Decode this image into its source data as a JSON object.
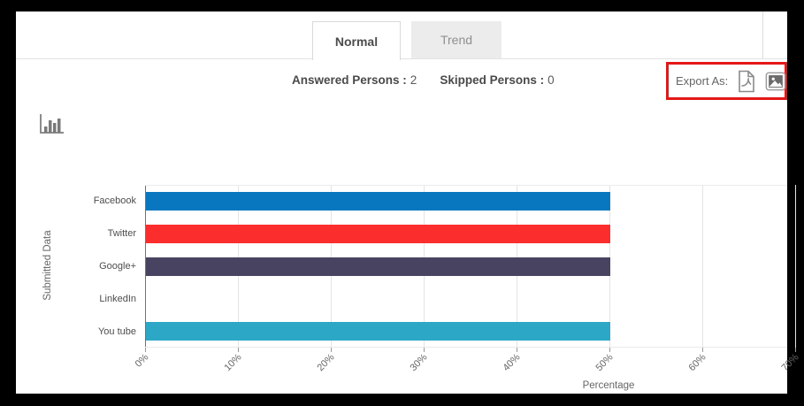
{
  "tabs": {
    "normal": "Normal",
    "trend": "Trend"
  },
  "stats": {
    "answered_label": "Answered Persons :",
    "answered_value": "2",
    "skipped_label": "Skipped Persons :",
    "skipped_value": "0"
  },
  "export": {
    "label": "Export As:",
    "icons": [
      "pdf-export-icon",
      "image-export-icon"
    ],
    "highlight_color": "#e41717"
  },
  "toolbar": {
    "chart_type_icon": "bar-chart-icon"
  },
  "chart_data": {
    "type": "bar",
    "orientation": "horizontal",
    "categories": [
      "Facebook",
      "Twitter",
      "Google+",
      "LinkedIn",
      "You tube"
    ],
    "values": [
      50,
      50,
      50,
      0,
      50
    ],
    "bar_colors": [
      "#0877c0",
      "#fc2d2d",
      "#484361",
      "#9e9e9e",
      "#2ca7c6"
    ],
    "x_ticks": [
      "0%",
      "10%",
      "20%",
      "30%",
      "40%",
      "50%",
      "60%",
      "70%"
    ],
    "xlabel": "Percentage",
    "ylabel": "Submitted Data",
    "xlim": [
      0,
      70
    ],
    "grid": true,
    "legend": false,
    "axis_color": "#737373",
    "gridline_color": "#e4e4e4"
  }
}
